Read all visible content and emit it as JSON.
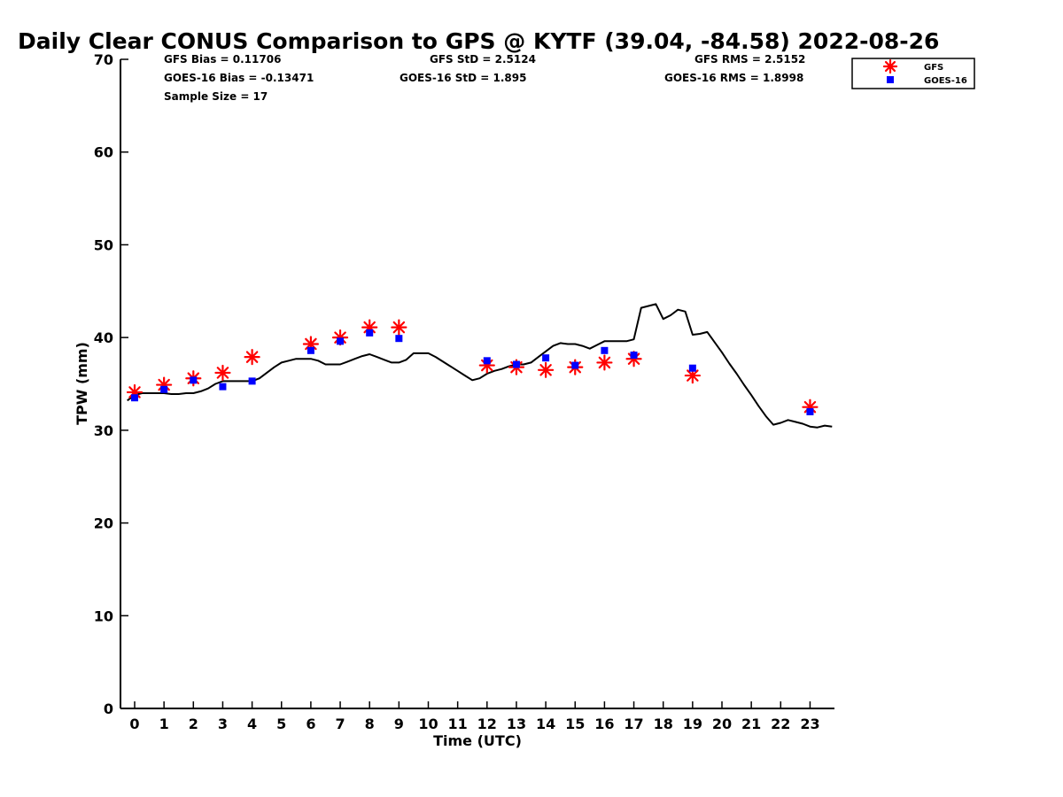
{
  "chart_data": {
    "type": "line",
    "title": "Daily Clear CONUS Comparison to GPS @ KYTF (39.04, -84.58) 2022-08-26",
    "xlabel": "Time (UTC)",
    "ylabel": "TPW (mm)",
    "xlim": [
      -0.5,
      23.75
    ],
    "ylim": [
      0,
      70
    ],
    "x_ticks": [
      "0",
      "1",
      "2",
      "3",
      "4",
      "5",
      "6",
      "7",
      "8",
      "9",
      "10",
      "11",
      "12",
      "13",
      "14",
      "15",
      "16",
      "17",
      "18",
      "19",
      "20",
      "21",
      "22",
      "23"
    ],
    "y_ticks": [
      "0",
      "10",
      "20",
      "30",
      "40",
      "50",
      "60",
      "70"
    ],
    "grid": false,
    "legend_position": "top-right",
    "stats": {
      "gfs_bias": "GFS Bias = 0.11706",
      "gfs_std": "GFS StD = 2.5124",
      "gfs_rms": "GFS RMS = 2.5152",
      "goes_bias": "GOES-16 Bias = -0.13471",
      "goes_std": "GOES-16 StD = 1.895",
      "goes_rms": "GOES-16 RMS = 1.8998",
      "sample_size": "Sample Size = 17"
    },
    "series": [
      {
        "name": "",
        "role": "GPS reference line",
        "color": "#000000",
        "x": [
          -0.25,
          0,
          0.25,
          0.5,
          0.75,
          1,
          1.25,
          1.5,
          1.75,
          2,
          2.25,
          2.5,
          2.75,
          3,
          3.25,
          3.5,
          3.75,
          4,
          4.25,
          4.5,
          4.75,
          5,
          5.25,
          5.5,
          5.75,
          6,
          6.25,
          6.5,
          6.75,
          7,
          7.25,
          7.5,
          7.75,
          8,
          8.25,
          8.5,
          8.75,
          9,
          9.25,
          9.5,
          9.75,
          10,
          10.25,
          10.5,
          10.75,
          11,
          11.25,
          11.5,
          11.75,
          12,
          12.25,
          12.5,
          12.75,
          13,
          13.25,
          13.5,
          13.75,
          14,
          14.25,
          14.5,
          14.75,
          15,
          15.25,
          15.5,
          15.75,
          16,
          16.25,
          16.5,
          16.75,
          17,
          17.25,
          17.5,
          17.75,
          18,
          18.25,
          18.5,
          18.75,
          19,
          19.25,
          19.5,
          19.75,
          20,
          20.25,
          20.5,
          20.75,
          21,
          21.25,
          21.5,
          21.75,
          22,
          22.25,
          22.5,
          22.75,
          23,
          23.25,
          23.5,
          23.75
        ],
        "values": [
          33.2,
          33.8,
          34.0,
          34.0,
          34.0,
          34.0,
          33.9,
          33.9,
          34.0,
          34.0,
          34.2,
          34.5,
          35.0,
          35.3,
          35.3,
          35.3,
          35.3,
          35.3,
          35.6,
          36.2,
          36.8,
          37.3,
          37.5,
          37.7,
          37.7,
          37.7,
          37.5,
          37.1,
          37.1,
          37.1,
          37.4,
          37.7,
          38.0,
          38.2,
          37.9,
          37.6,
          37.3,
          37.3,
          37.6,
          38.3,
          38.3,
          38.3,
          37.9,
          37.4,
          36.9,
          36.4,
          35.9,
          35.4,
          35.6,
          36.1,
          36.4,
          36.6,
          36.9,
          37.1,
          37.1,
          37.3,
          37.9,
          38.5,
          39.1,
          39.4,
          39.3,
          39.3,
          39.1,
          38.8,
          39.2,
          39.6,
          39.6,
          39.6,
          39.6,
          39.8,
          43.2,
          43.4,
          43.6,
          42.0,
          42.4,
          43.0,
          42.8,
          40.3,
          40.4,
          40.6,
          39.5,
          38.4,
          37.2,
          36.1,
          34.9,
          33.8,
          32.6,
          31.5,
          30.6,
          30.8,
          31.1,
          30.9,
          30.7,
          30.4,
          30.3,
          30.5,
          30.4
        ],
        "style": "line"
      },
      {
        "name": "GFS",
        "color": "#ff0000",
        "marker": "asterisk",
        "x": [
          0,
          1,
          2,
          3,
          4,
          6,
          7,
          8,
          9,
          12,
          13,
          14,
          15,
          16,
          17,
          19,
          23
        ],
        "values": [
          34.1,
          34.9,
          35.6,
          36.2,
          37.9,
          39.3,
          40.0,
          41.1,
          41.1,
          37.0,
          36.8,
          36.5,
          36.8,
          37.3,
          37.7,
          35.9,
          32.5
        ]
      },
      {
        "name": "GOES-16",
        "color": "#0000ff",
        "marker": "square",
        "x": [
          0,
          1,
          2,
          3,
          4,
          6,
          7,
          8,
          9,
          12,
          13,
          14,
          15,
          16,
          17,
          19,
          23
        ],
        "values": [
          33.5,
          34.4,
          35.4,
          34.7,
          35.3,
          38.6,
          39.6,
          40.5,
          39.9,
          37.5,
          37.1,
          37.8,
          37.0,
          38.6,
          38.1,
          36.7,
          32.0
        ]
      }
    ]
  }
}
